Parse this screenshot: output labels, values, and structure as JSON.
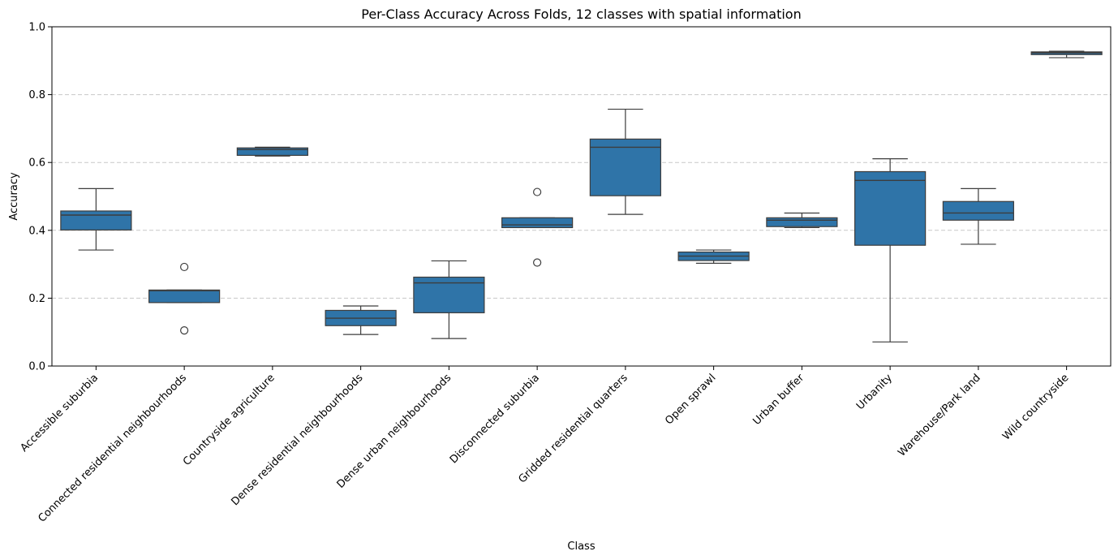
{
  "chart_data": {
    "type": "box",
    "title": "Per-Class Accuracy Across Folds, 12 classes with spatial information",
    "xlabel": "Class",
    "ylabel": "Accuracy",
    "ylim": [
      0.0,
      1.0
    ],
    "yticks": [
      "0.0",
      "0.2",
      "0.4",
      "0.6",
      "0.8",
      "1.0"
    ],
    "grid": "y-dashed",
    "box_color": "#2f74a8",
    "categories": [
      "Accessible suburbia",
      "Connected residential neighbourhoods",
      "Countryside agriculture",
      "Dense residential neighbourhoods",
      "Dense urban neighbourhoods",
      "Disconnected suburbia",
      "Gridded residential quarters",
      "Open sprawl",
      "Urban buffer",
      "Urbanity",
      "Warehouse/Park land",
      "Wild countryside"
    ],
    "boxes": [
      {
        "whislo": 0.342,
        "q1": 0.401,
        "med": 0.445,
        "q3": 0.457,
        "whishi": 0.523,
        "fliers": []
      },
      {
        "whislo": 0.187,
        "q1": 0.187,
        "med": 0.222,
        "q3": 0.224,
        "whishi": 0.224,
        "fliers": [
          0.292,
          0.105
        ]
      },
      {
        "whislo": 0.619,
        "q1": 0.621,
        "med": 0.638,
        "q3": 0.643,
        "whishi": 0.645,
        "fliers": []
      },
      {
        "whislo": 0.093,
        "q1": 0.119,
        "med": 0.141,
        "q3": 0.164,
        "whishi": 0.177,
        "fliers": []
      },
      {
        "whislo": 0.081,
        "q1": 0.157,
        "med": 0.245,
        "q3": 0.262,
        "whishi": 0.31,
        "fliers": []
      },
      {
        "whislo": 0.408,
        "q1": 0.408,
        "med": 0.416,
        "q3": 0.437,
        "whishi": 0.437,
        "fliers": [
          0.513,
          0.305
        ]
      },
      {
        "whislo": 0.447,
        "q1": 0.502,
        "med": 0.645,
        "q3": 0.669,
        "whishi": 0.757,
        "fliers": []
      },
      {
        "whislo": 0.303,
        "q1": 0.311,
        "med": 0.324,
        "q3": 0.336,
        "whishi": 0.342,
        "fliers": []
      },
      {
        "whislo": 0.408,
        "q1": 0.411,
        "med": 0.43,
        "q3": 0.437,
        "whishi": 0.451,
        "fliers": []
      },
      {
        "whislo": 0.071,
        "q1": 0.356,
        "med": 0.547,
        "q3": 0.573,
        "whishi": 0.611,
        "fliers": []
      },
      {
        "whislo": 0.359,
        "q1": 0.43,
        "med": 0.451,
        "q3": 0.485,
        "whishi": 0.523,
        "fliers": []
      },
      {
        "whislo": 0.909,
        "q1": 0.918,
        "med": 0.923,
        "q3": 0.926,
        "whishi": 0.928,
        "fliers": []
      }
    ]
  }
}
